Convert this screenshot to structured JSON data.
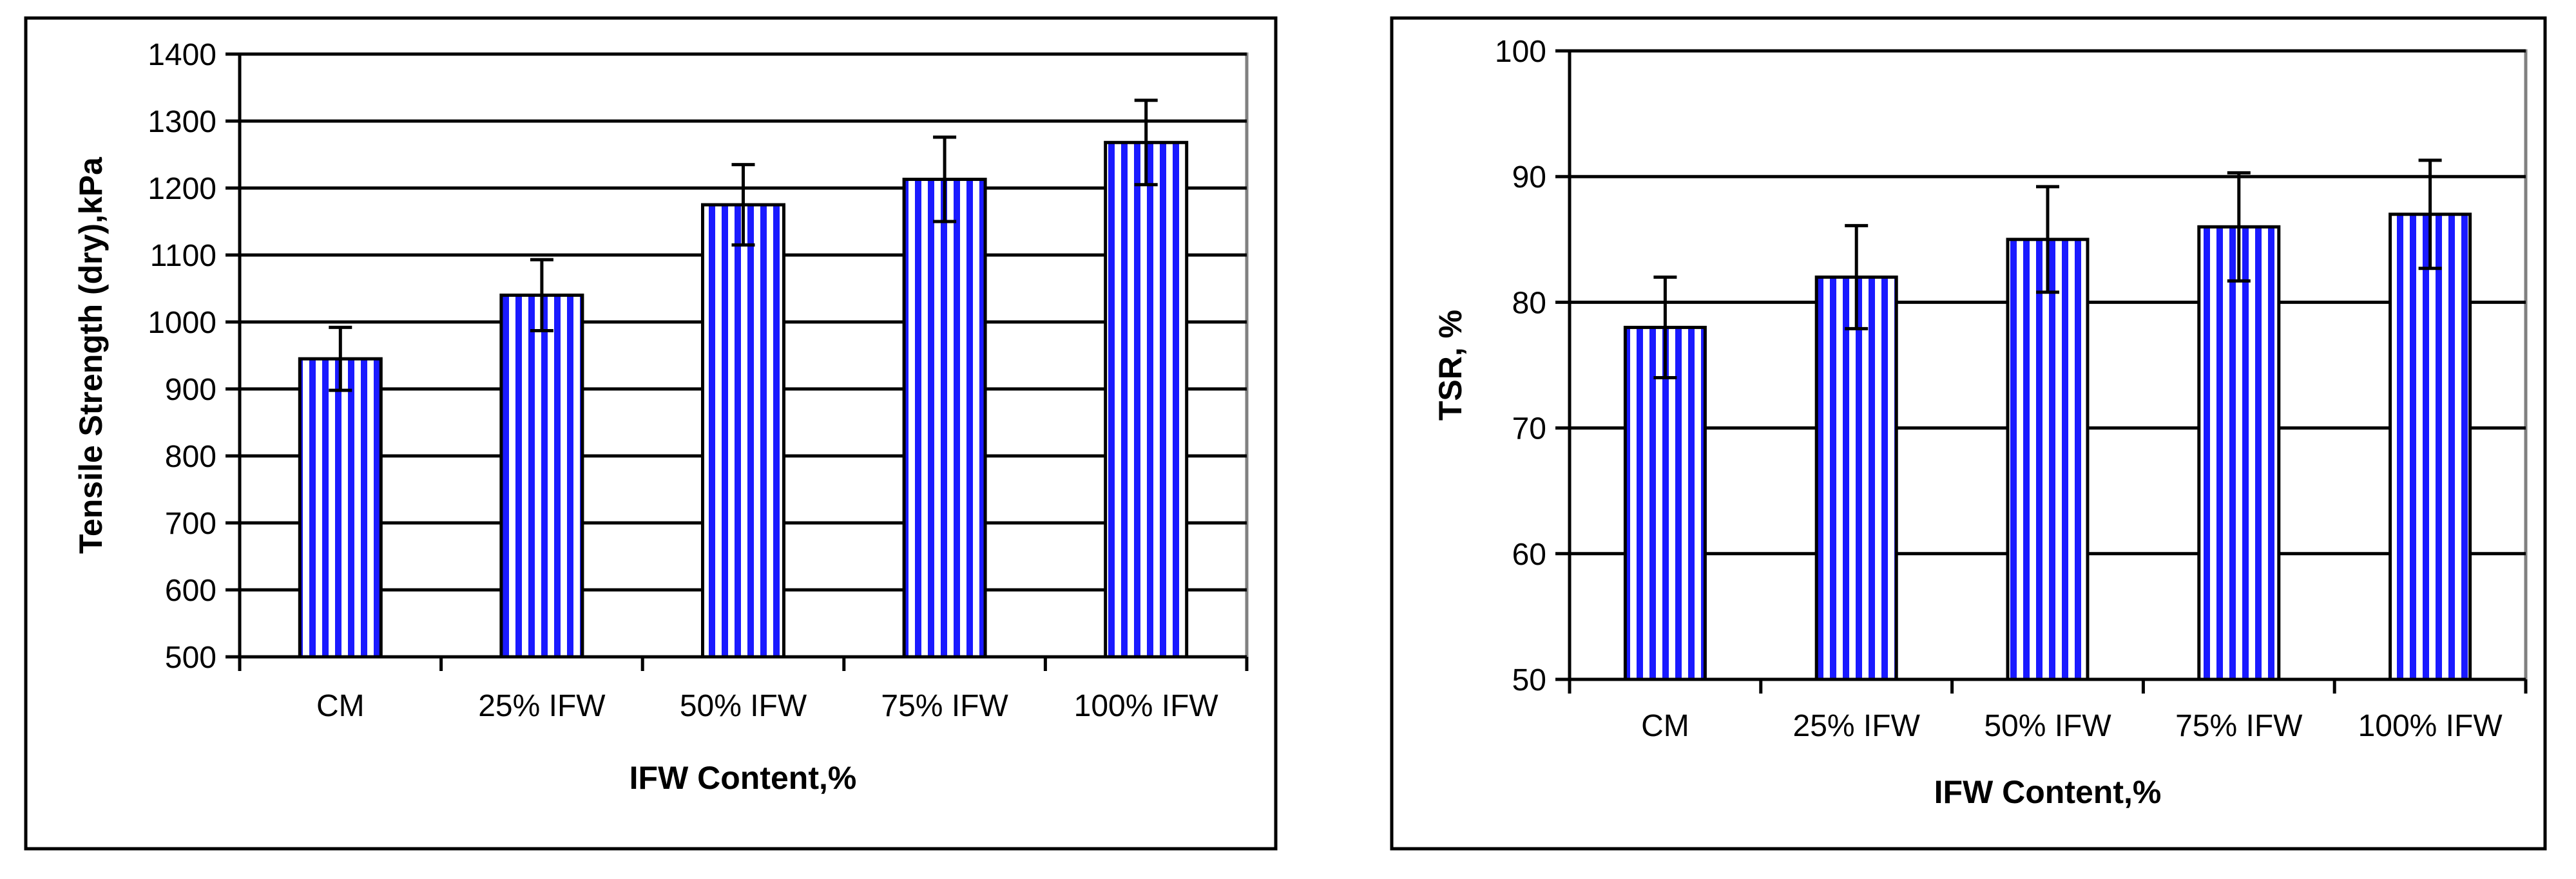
{
  "chart_data": [
    {
      "type": "bar",
      "title": "",
      "xlabel": "IFW Content,%",
      "ylabel": "Tensile Strength (dry),kPa",
      "categories": [
        "CM",
        "25% IFW",
        "50% IFW",
        "75% IFW",
        "100% IFW"
      ],
      "series": [
        {
          "name": "Tensile Strength (dry)",
          "values": [
            945,
            1040,
            1175,
            1213,
            1268
          ],
          "errors": [
            47,
            53,
            60,
            63,
            63
          ]
        }
      ],
      "ylim": [
        500,
        1400
      ],
      "yticks": [
        500,
        600,
        700,
        800,
        900,
        1000,
        1100,
        1200,
        1300,
        1400
      ],
      "grid": true,
      "legend": "none",
      "bar_fill_color": "#1a1aff",
      "bar_stripe_color": "#ffffff"
    },
    {
      "type": "bar",
      "title": "",
      "xlabel": "IFW Content,%",
      "ylabel": "TSR, %",
      "categories": [
        "CM",
        "25% IFW",
        "50% IFW",
        "75% IFW",
        "100% IFW"
      ],
      "series": [
        {
          "name": "TSR",
          "values": [
            78,
            82,
            85,
            86,
            87
          ],
          "errors": [
            4,
            4.1,
            4.2,
            4.3,
            4.3
          ]
        }
      ],
      "ylim": [
        50,
        100
      ],
      "yticks": [
        50,
        60,
        70,
        80,
        90,
        100
      ],
      "grid": true,
      "legend": "none",
      "bar_fill_color": "#1a1aff",
      "bar_stripe_color": "#ffffff"
    }
  ]
}
